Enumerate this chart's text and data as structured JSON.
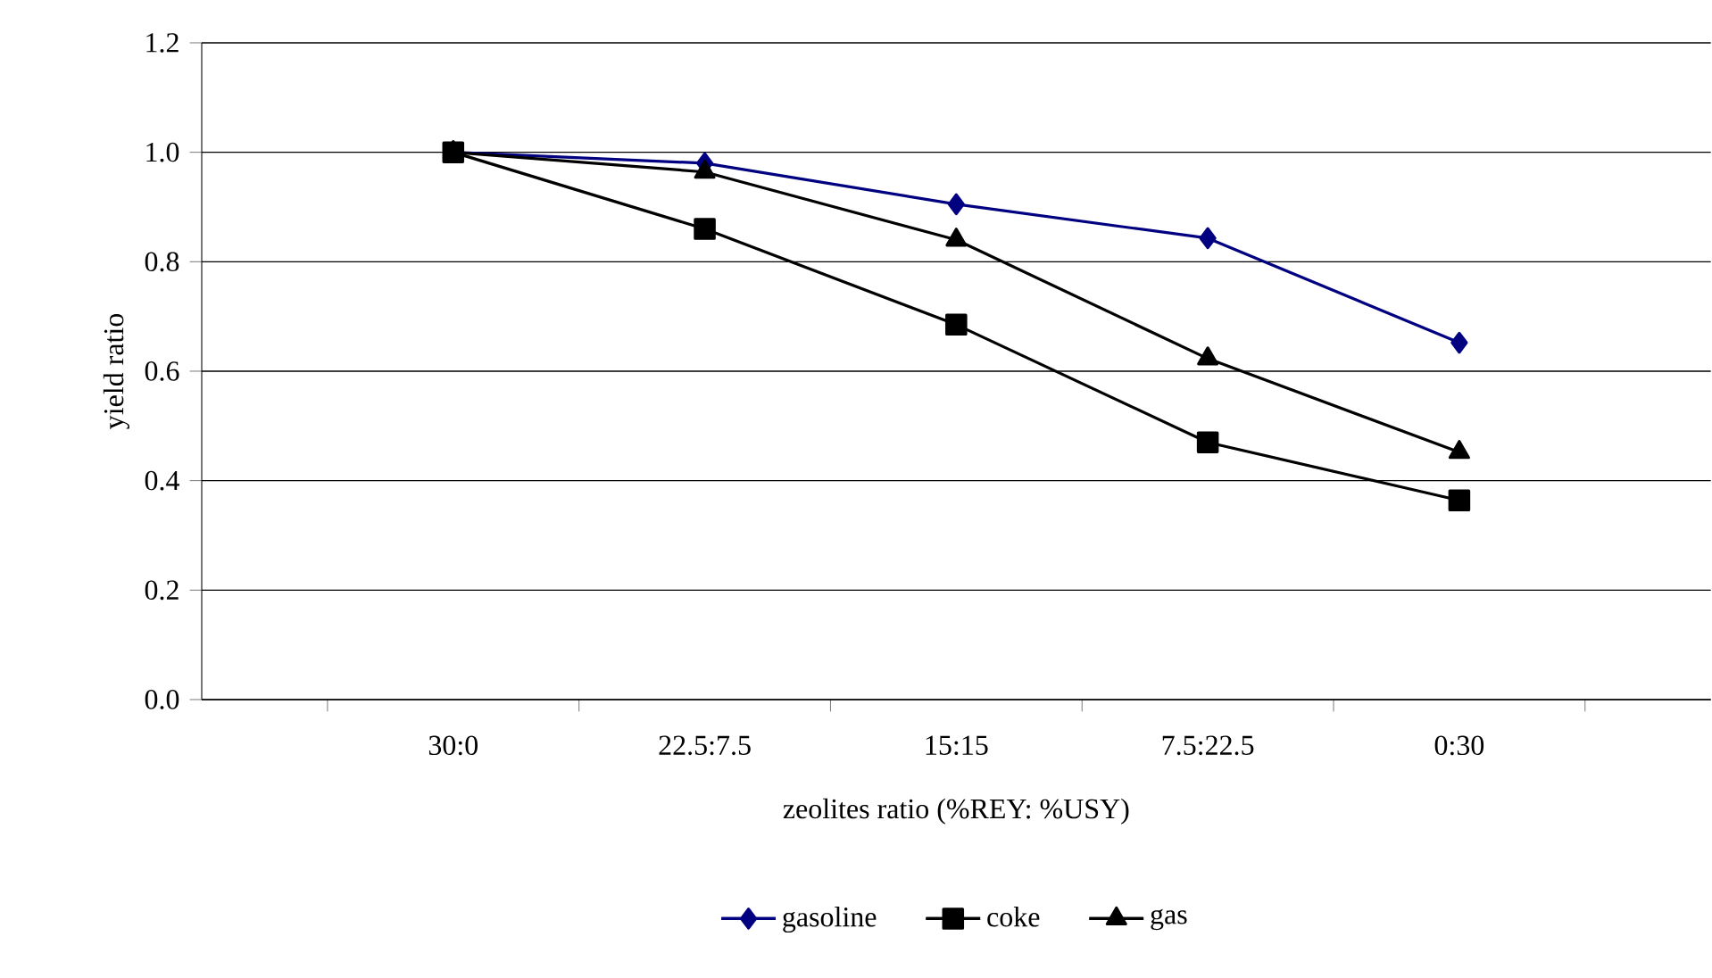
{
  "chart_data": {
    "type": "line",
    "xlabel": "zeolites ratio (%REY: %USY)",
    "ylabel": "yield ratio",
    "categories": [
      "30:0",
      "22.5:7.5",
      "15:15",
      "7.5:22.5",
      "0:30"
    ],
    "series": [
      {
        "name": "gasoline",
        "color": "#000080",
        "marker": "diamond",
        "values": [
          1.0,
          0.98,
          0.905,
          0.843,
          0.652
        ]
      },
      {
        "name": "coke",
        "color": "#000000",
        "marker": "square",
        "values": [
          1.0,
          0.86,
          0.685,
          0.47,
          0.364
        ]
      },
      {
        "name": "gas",
        "color": "#000000",
        "marker": "triangle",
        "values": [
          1.0,
          0.964,
          0.84,
          0.623,
          0.452
        ]
      }
    ],
    "ylim": [
      0,
      1.2
    ],
    "yticks": [
      {
        "value": 0,
        "label": "0.0"
      },
      0.2,
      0.4,
      0.6,
      0.8,
      {
        "value": 1,
        "label": "1.0"
      },
      1.2
    ],
    "grid": "y",
    "legend": "bottom",
    "line_style": "solid"
  }
}
